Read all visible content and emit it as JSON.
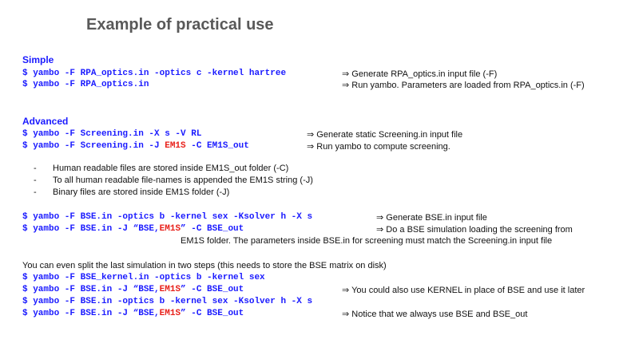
{
  "title": "Example of practical use",
  "simple": {
    "heading": "Simple",
    "lines": [
      {
        "cmd": "$ yambo -F RPA_optics.in -optics c -kernel hartree",
        "note": "⇒ Generate RPA_optics.in input file (-F)"
      },
      {
        "cmd": "$ yambo -F RPA_optics.in",
        "note": "⇒ Run yambo. Parameters are loaded from RPA_optics.in (-F)"
      }
    ]
  },
  "advanced": {
    "heading": "Advanced",
    "lines": [
      {
        "cmd": "$ yambo -F Screening.in -X s -V RL",
        "note": "⇒ Generate static Screening.in input file"
      },
      {
        "cmd_a": "$ yambo -F Screening.in -J ",
        "cmd_red": "EM1S",
        "cmd_b": " -C EM1S_out",
        "note": "⇒ Run yambo to compute screening."
      }
    ],
    "bullets": [
      {
        "dash": "-",
        "text": "Human readable files are stored inside EM1S_out folder (-C)"
      },
      {
        "dash": "-",
        "text": "To all human readable file-names is appended the EM1S string (-J)"
      },
      {
        "dash": "-",
        "text": "Binary files are stored inside EM1S folder (-J)"
      }
    ],
    "bse_lines": [
      {
        "cmd": "$ yambo -F BSE.in -optics b -kernel sex -Ksolver h -X s",
        "note": "⇒ Generate BSE.in input file"
      },
      {
        "cmd_a": "$ yambo -F BSE.in -J “BSE,",
        "cmd_red": "EM1S",
        "cmd_b": "” -C BSE_out",
        "note": "⇒ Do a BSE simulation loading the screening from"
      }
    ],
    "bse_continuation": "EM1S folder. The parameters inside BSE.in for screening must match the Screening.in input file"
  },
  "split": {
    "intro": "You can even split the last simulation in two steps (this needs to store the BSE matrix on disk)",
    "lines": [
      {
        "cmd": "$ yambo -F BSE_kernel.in -optics b -kernel sex",
        "note": ""
      },
      {
        "cmd_a": "$ yambo -F BSE.in -J “BSE,",
        "cmd_red": "EM1S",
        "cmd_b": "”  -C BSE_out",
        "note": "⇒ You could also use KERNEL in place of BSE and use it later"
      },
      {
        "cmd": "$ yambo -F BSE.in -optics b -kernel sex -Ksolver h -X s",
        "note": ""
      },
      {
        "cmd_a": "$ yambo -F BSE.in -J “BSE,",
        "cmd_red": "EM1S",
        "cmd_b": "” -C BSE_out",
        "note": "⇒ Notice that we always use BSE and BSE_out"
      }
    ]
  }
}
